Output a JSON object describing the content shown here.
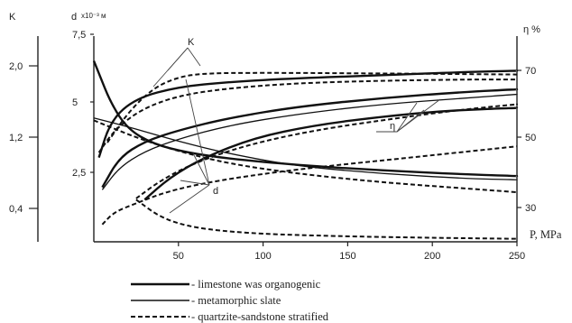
{
  "chart_data": {
    "type": "line",
    "x_axis": {
      "label": "P, MPa",
      "range": [
        0,
        250
      ],
      "ticks": [
        "50",
        "100",
        "150",
        "200",
        "250"
      ]
    },
    "y_axes": {
      "K": {
        "label": "K",
        "ticks": [
          "2,0",
          "1,2",
          "0,4"
        ]
      },
      "d": {
        "label": "d",
        "unit": "x10⁻³ м",
        "ticks": [
          "7,5",
          "5",
          "2,5"
        ]
      },
      "eta": {
        "label": "η %",
        "ticks": [
          "70",
          "50",
          "30"
        ]
      }
    },
    "annotations": {
      "K": "K",
      "eta": "η",
      "d": "d"
    },
    "legend": [
      {
        "label": "- limestone was organogenic",
        "style": "solid"
      },
      {
        "label": "- metamorphic slate",
        "style": "thin-solid"
      },
      {
        "label": "- quartzite-sandstone stratified",
        "style": "dashed"
      }
    ],
    "series": [
      {
        "family": "K",
        "material": "limestone",
        "style": "solid",
        "x": [
          0,
          3,
          10,
          20,
          35,
          55,
          80,
          120,
          170,
          220,
          250
        ],
        "y": [
          7.3,
          6.8,
          5.6,
          4.55,
          3.95,
          3.6,
          3.35,
          3.1,
          2.88,
          2.72,
          2.65
        ]
      },
      {
        "family": "K",
        "material": "metamorphic slate",
        "style": "thin-solid",
        "x": [
          0,
          25,
          50,
          80,
          120,
          170,
          220,
          250
        ],
        "y": [
          5.0,
          4.55,
          4.05,
          3.55,
          3.05,
          2.75,
          2.55,
          2.5
        ]
      },
      {
        "family": "K",
        "material": "quartzite-sandstone",
        "style": "dashed",
        "x": [
          0,
          25,
          50,
          80,
          120,
          170,
          220,
          250
        ],
        "y": [
          4.9,
          4.2,
          3.65,
          3.15,
          2.75,
          2.4,
          2.15,
          2.0
        ]
      },
      {
        "family": "d",
        "material": "limestone",
        "style": "solid",
        "x": [
          3,
          10,
          25,
          50,
          80,
          120,
          170,
          220,
          250
        ],
        "y": [
          3.4,
          4.9,
          5.8,
          6.25,
          6.45,
          6.6,
          6.72,
          6.85,
          6.9
        ]
      },
      {
        "family": "d",
        "material": "quartzite-sandstone",
        "style": "dashed",
        "x": [
          8,
          20,
          35,
          50,
          65,
          100,
          150,
          200,
          250
        ],
        "y": [
          4.0,
          5.2,
          6.2,
          6.65,
          6.8,
          6.82,
          6.8,
          6.78,
          6.75
        ]
      },
      {
        "family": "d",
        "material": "quartzite-sandstone",
        "style": "dashed",
        "x": [
          3,
          12,
          28,
          50,
          80,
          120,
          170,
          220,
          250
        ],
        "y": [
          3.6,
          4.5,
          5.35,
          5.9,
          6.2,
          6.4,
          6.5,
          6.55,
          6.55
        ]
      },
      {
        "family": "eta",
        "material": "limestone",
        "style": "solid",
        "x": [
          5,
          15,
          30,
          50,
          80,
          120,
          170,
          220,
          250
        ],
        "y": [
          2.2,
          3.4,
          4.05,
          4.5,
          5.0,
          5.45,
          5.8,
          6.05,
          6.15
        ]
      },
      {
        "family": "eta",
        "material": "metamorphic slate",
        "style": "thin-solid",
        "x": [
          5,
          15,
          30,
          50,
          80,
          120,
          170,
          220,
          250
        ],
        "y": [
          2.1,
          3.0,
          3.65,
          4.15,
          4.7,
          5.15,
          5.55,
          5.8,
          5.95
        ]
      },
      {
        "family": "eta",
        "material": "quartzite-sandstone",
        "style": "dashed",
        "x": [
          25,
          40,
          60,
          90,
          130,
          180,
          220,
          250
        ],
        "y": [
          1.75,
          2.5,
          3.2,
          3.9,
          4.5,
          5.0,
          5.35,
          5.55
        ]
      },
      {
        "family": "eta",
        "material": "limestone",
        "style": "solid",
        "x": [
          30,
          45,
          65,
          95,
          130,
          170,
          210,
          250
        ],
        "y": [
          1.7,
          2.6,
          3.4,
          4.2,
          4.7,
          5.05,
          5.3,
          5.4
        ]
      },
      {
        "family": "eta",
        "material": "quartzite-sandstone",
        "style": "dashed",
        "x": [
          5,
          12,
          25,
          40,
          60,
          90,
          130,
          180,
          250
        ],
        "y": [
          0.7,
          1.2,
          1.55,
          1.95,
          2.3,
          2.65,
          3.0,
          3.35,
          3.85
        ]
      },
      {
        "family": "d",
        "material": "quartzite-sandstone",
        "style": "dashed",
        "x": [
          25,
          40,
          60,
          90,
          130,
          180,
          250
        ],
        "y": [
          1.7,
          0.95,
          0.55,
          0.35,
          0.25,
          0.18,
          0.12
        ]
      }
    ]
  }
}
